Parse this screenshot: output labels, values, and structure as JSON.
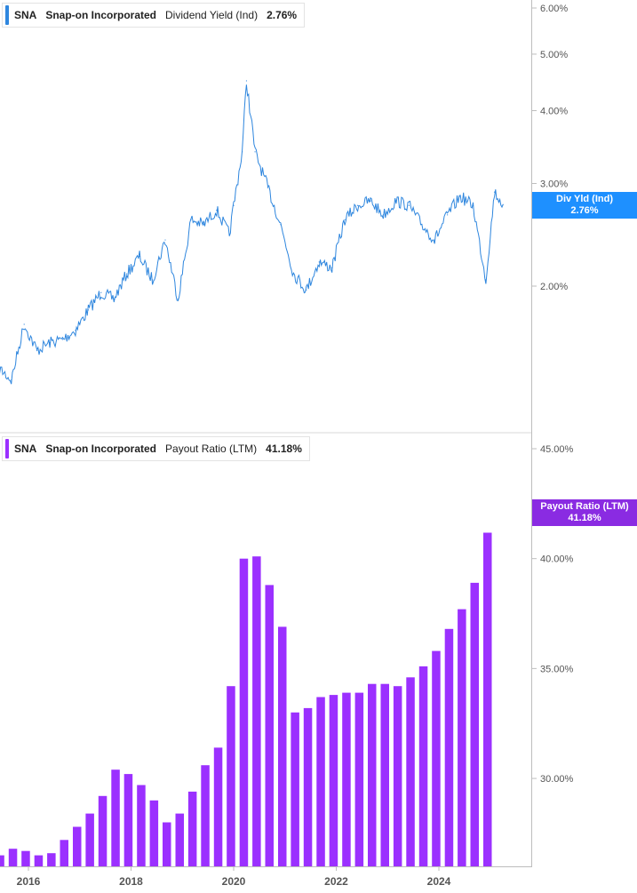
{
  "panels": [
    {
      "ticker": "SNA",
      "company": "Snap-on Incorporated",
      "metric": "Dividend Yield (Ind)",
      "value": "2.76%",
      "tag_label": "Div Yld (Ind)",
      "tag_value": "2.76%",
      "color": "#2e86de",
      "tag_color": "#1e90ff"
    },
    {
      "ticker": "SNA",
      "company": "Snap-on Incorporated",
      "metric": "Payout Ratio (LTM)",
      "value": "41.18%",
      "tag_label": "Payout Ratio (LTM)",
      "tag_value": "41.18%",
      "color": "#9b30ff",
      "tag_color": "#8a2be2"
    }
  ],
  "chart_data": [
    {
      "type": "line",
      "title": "SNA Snap-on Incorporated Dividend Yield (Ind)",
      "series": [
        {
          "name": "Dividend Yield (Ind)",
          "x": [
            "2015-06",
            "2015-09",
            "2015-12",
            "2016-03",
            "2016-06",
            "2016-09",
            "2016-12",
            "2017-03",
            "2017-06",
            "2017-09",
            "2017-12",
            "2018-03",
            "2018-06",
            "2018-09",
            "2018-12",
            "2019-03",
            "2019-06",
            "2019-09",
            "2019-12",
            "2020-01",
            "2020-03",
            "2020-04",
            "2020-06",
            "2020-09",
            "2020-12",
            "2021-03",
            "2021-06",
            "2021-09",
            "2021-12",
            "2022-03",
            "2022-06",
            "2022-09",
            "2022-12",
            "2023-03",
            "2023-06",
            "2023-09",
            "2023-12",
            "2024-03",
            "2024-06",
            "2024-09",
            "2024-12",
            "2025-02",
            "2025-04"
          ],
          "values": [
            1.45,
            1.38,
            1.72,
            1.55,
            1.6,
            1.62,
            1.68,
            1.82,
            1.95,
            1.9,
            2.1,
            2.25,
            2.05,
            2.4,
            1.9,
            2.6,
            2.55,
            2.7,
            2.45,
            2.75,
            3.4,
            4.5,
            3.4,
            2.95,
            2.55,
            2.1,
            1.97,
            2.2,
            2.15,
            2.6,
            2.75,
            2.8,
            2.65,
            2.8,
            2.75,
            2.55,
            2.4,
            2.65,
            2.85,
            2.75,
            2.05,
            2.9,
            2.76
          ]
        }
      ],
      "yticks": [
        "2.00%",
        "3.00%",
        "4.00%",
        "5.00%",
        "6.00%"
      ],
      "ylim": [
        1.25,
        6.2
      ],
      "scale": "log",
      "grid": false
    },
    {
      "type": "bar",
      "title": "SNA Snap-on Incorporated Payout Ratio (LTM)",
      "categories": [
        "2015-Q2",
        "2015-Q3",
        "2015-Q4",
        "2016-Q1",
        "2016-Q2",
        "2016-Q3",
        "2016-Q4",
        "2017-Q1",
        "2017-Q2",
        "2017-Q3",
        "2017-Q4",
        "2018-Q1",
        "2018-Q2",
        "2018-Q3",
        "2018-Q4",
        "2019-Q1",
        "2019-Q2",
        "2019-Q3",
        "2019-Q4",
        "2020-Q1",
        "2020-Q2",
        "2020-Q3",
        "2020-Q4",
        "2021-Q1",
        "2021-Q2",
        "2021-Q3",
        "2021-Q4",
        "2022-Q1",
        "2022-Q2",
        "2022-Q3",
        "2022-Q4",
        "2023-Q1",
        "2023-Q2",
        "2023-Q3",
        "2023-Q4",
        "2024-Q1",
        "2024-Q2",
        "2024-Q3",
        "2024-Q4",
        "2025-Q1"
      ],
      "values": [
        26.2,
        26.5,
        26.8,
        26.7,
        26.5,
        26.6,
        27.2,
        27.8,
        28.4,
        29.2,
        30.4,
        30.2,
        29.7,
        29.0,
        28.0,
        28.4,
        29.4,
        30.6,
        31.4,
        34.2,
        40.0,
        40.1,
        38.8,
        36.9,
        33.0,
        33.2,
        33.7,
        33.8,
        33.9,
        33.9,
        34.3,
        34.3,
        34.2,
        34.6,
        35.1,
        35.8,
        36.8,
        37.7,
        38.9,
        41.18
      ],
      "yticks": [
        "30.00%",
        "35.00%",
        "40.00%",
        "45.00%"
      ],
      "ylim": [
        26.0,
        45.0
      ],
      "grid": false
    }
  ],
  "x_axis": {
    "labels": [
      "2016",
      "2018",
      "2020",
      "2022",
      "2024"
    ]
  }
}
